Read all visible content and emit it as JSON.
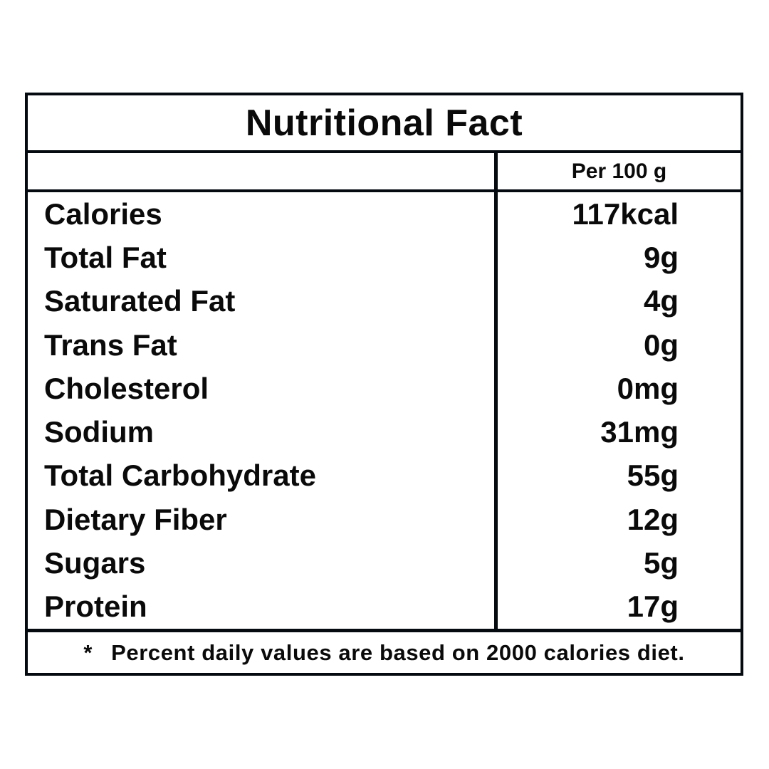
{
  "table": {
    "title": "Nutritional Fact",
    "column_header": "Per 100 g",
    "rows": [
      {
        "label": "Calories",
        "value": "117kcal"
      },
      {
        "label": "Total Fat",
        "value": "9g"
      },
      {
        "label": "Saturated Fat",
        "value": "4g"
      },
      {
        "label": "Trans Fat",
        "value": "0g"
      },
      {
        "label": "Cholesterol",
        "value": "0mg"
      },
      {
        "label": "Sodium",
        "value": "31mg"
      },
      {
        "label": "Total Carbohydrate",
        "value": "55g"
      },
      {
        "label": "Dietary Fiber",
        "value": "12g"
      },
      {
        "label": "Sugars",
        "value": "5g"
      },
      {
        "label": "Protein",
        "value": "17g"
      }
    ],
    "footnote_marker": "*",
    "footnote_text": "Percent daily values are based on 2000 calories diet.",
    "colors": {
      "border": "#040a10",
      "text": "#0a0a0a",
      "background": "#ffffff"
    }
  }
}
